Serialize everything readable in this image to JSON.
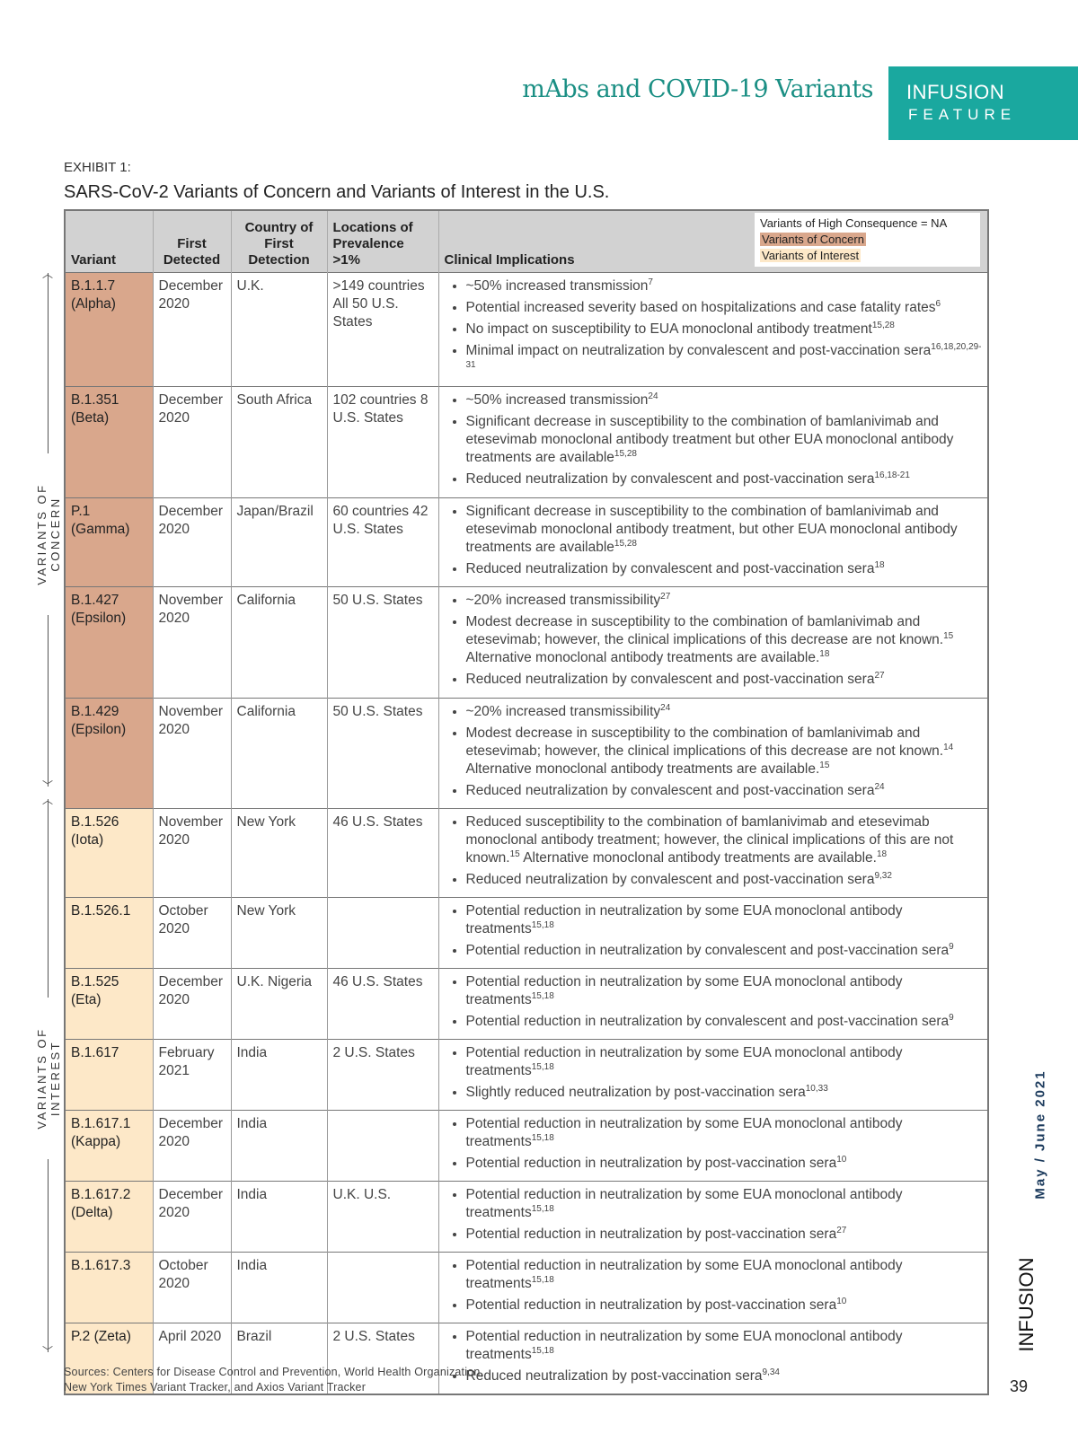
{
  "header": {
    "title": "mAbs and COVID-19 Variants",
    "brand": "INFUSION",
    "brand_sub": "FEATURE"
  },
  "exhibit": {
    "label": "EXHIBIT 1:",
    "title": "SARS-CoV-2 Variants of Concern and Variants of Interest in the U.S."
  },
  "colors": {
    "teal": "#1aa89f",
    "concern": "#d9a78c",
    "interest": "#fde8c8",
    "header_gray": "#d2d2d2"
  },
  "table": {
    "headers": {
      "variant": "Variant",
      "first_detected": "First Detected",
      "country": "Country of First Detection",
      "locations": "Locations of Prevalence >1%",
      "clinical": "Clinical Implications"
    },
    "legend": {
      "high": "Variants of High Consequence = NA",
      "concern": "Variants of Concern",
      "interest": "Variants of Interest"
    },
    "rows": [
      {
        "group": "concern",
        "variant": "B.1.1.7 (Alpha)",
        "first": "December 2020",
        "country": "U.K.",
        "locations": ">149 countries All 50 U.S. States",
        "bullets": [
          {
            "t": "~50% increased transmission",
            "s": "7"
          },
          {
            "t": "Potential increased severity based on hospitalizations and case fatality rates",
            "s": "6"
          },
          {
            "t": "No impact on susceptibility to EUA monoclonal antibody treatment",
            "s": "15,28"
          },
          {
            "t": "Minimal impact on neutralization by convalescent and post-vaccination sera",
            "s": "16,18,20,29-31"
          }
        ]
      },
      {
        "group": "concern",
        "variant": "B.1.351 (Beta)",
        "first": "December 2020",
        "country": "South Africa",
        "locations": "102 countries 8 U.S. States",
        "bullets": [
          {
            "t": "~50% increased transmission",
            "s": "24"
          },
          {
            "t": "Significant decrease in susceptibility to the combination of bamlanivimab and etesevimab monoclonal antibody treatment but other EUA monoclonal antibody treatments are available",
            "s": "15,28"
          },
          {
            "t": "Reduced neutralization by convalescent and post-vaccination sera",
            "s": "16,18-21"
          }
        ]
      },
      {
        "group": "concern",
        "variant": "P.1 (Gamma)",
        "first": "December 2020",
        "country": "Japan/Brazil",
        "locations": "60 countries 42 U.S. States",
        "bullets": [
          {
            "t": "Significant decrease in susceptibility to the combination of bamlanivimab and etesevimab monoclonal antibody treatment, but other EUA monoclonal antibody treatments are available",
            "s": "15,28"
          },
          {
            "t": "Reduced neutralization by convalescent and post-vaccination sera",
            "s": "18"
          }
        ]
      },
      {
        "group": "concern",
        "variant": "B.1.427 (Epsilon)",
        "first": "November 2020",
        "country": "California",
        "locations": "50 U.S. States",
        "bullets": [
          {
            "t": "~20% increased transmissibility",
            "s": "27"
          },
          {
            "t": "Modest decrease in susceptibility to the combination of bamlanivimab and etesevimab; however, the clinical implications of this decrease are not known.",
            "s": "15",
            "t2": " Alternative monoclonal antibody treatments are available.",
            "s2": "18"
          },
          {
            "t": "Reduced neutralization by convalescent and post-vaccination sera",
            "s": "27"
          }
        ]
      },
      {
        "group": "concern",
        "variant": "B.1.429 (Epsilon)",
        "first": "November 2020",
        "country": "California",
        "locations": "50 U.S. States",
        "bullets": [
          {
            "t": "~20% increased transmissibility",
            "s": "24"
          },
          {
            "t": "Modest decrease in susceptibility to the combination of bamlanivimab and etesevimab; however, the clinical implications of this decrease are not known.",
            "s": "14",
            "t2": " Alternative monoclonal antibody treatments are available.",
            "s2": "15"
          },
          {
            "t": "Reduced neutralization by convalescent and post-vaccination sera",
            "s": "24"
          }
        ]
      },
      {
        "group": "interest",
        "variant": "B.1.526 (Iota)",
        "first": "November 2020",
        "country": "New York",
        "locations": "46 U.S. States",
        "bullets": [
          {
            "t": "Reduced susceptibility to the combination of bamlanivimab and etesevimab monoclonal antibody treatment; however, the clinical implications of this are not known.",
            "s": "15",
            "t2": " Alternative monoclonal antibody treatments are available.",
            "s2": "18"
          },
          {
            "t": "Reduced neutralization by convalescent and post-vaccination sera",
            "s": "9,32"
          }
        ]
      },
      {
        "group": "interest",
        "variant": "B.1.526.1",
        "first": "October 2020",
        "country": "New York",
        "locations": "",
        "bullets": [
          {
            "t": "Potential reduction in neutralization by some EUA monoclonal antibody treatments",
            "s": "15,18"
          },
          {
            "t": "Potential reduction in neutralization by convalescent and post-vaccination sera",
            "s": "9"
          }
        ]
      },
      {
        "group": "interest",
        "variant": "B.1.525 (Eta)",
        "first": "December 2020",
        "country": "U.K. Nigeria",
        "locations": "46 U.S. States",
        "bullets": [
          {
            "t": "Potential reduction in neutralization by some EUA monoclonal antibody treatments",
            "s": "15,18"
          },
          {
            "t": "Potential reduction in neutralization by convalescent and post-vaccination sera",
            "s": "9"
          }
        ]
      },
      {
        "group": "interest",
        "variant": "B.1.617",
        "first": "February 2021",
        "country": "India",
        "locations": "2 U.S. States",
        "bullets": [
          {
            "t": "Potential reduction in neutralization by some EUA monoclonal antibody treatments",
            "s": "15,18"
          },
          {
            "t": "Slightly reduced neutralization by post-vaccination sera",
            "s": "10,33"
          }
        ]
      },
      {
        "group": "interest",
        "variant": "B.1.617.1 (Kappa)",
        "first": "December 2020",
        "country": "India",
        "locations": "",
        "bullets": [
          {
            "t": "Potential reduction in neutralization by some EUA monoclonal antibody treatments",
            "s": "15,18"
          },
          {
            "t": "Potential reduction in neutralization by post-vaccination sera",
            "s": "10"
          }
        ]
      },
      {
        "group": "interest",
        "variant": "B.1.617.2 (Delta)",
        "first": "December 2020",
        "country": "India",
        "locations": "U.K. U.S.",
        "bullets": [
          {
            "t": "Potential reduction in neutralization by some EUA monoclonal antibody treatments",
            "s": "15,18"
          },
          {
            "t": "Potential reduction in neutralization by post-vaccination sera",
            "s": "27"
          }
        ]
      },
      {
        "group": "interest",
        "variant": "B.1.617.3",
        "first": "October 2020",
        "country": "India",
        "locations": "",
        "bullets": [
          {
            "t": "Potential reduction in neutralization by some EUA monoclonal antibody treatments",
            "s": "15,18"
          },
          {
            "t": "Potential reduction in neutralization by post-vaccination sera",
            "s": "10"
          }
        ]
      },
      {
        "group": "interest",
        "variant": "P.2 (Zeta)",
        "first": "April 2020",
        "country": "Brazil",
        "locations": "2 U.S. States",
        "bullets": [
          {
            "t": "Potential reduction in neutralization by some EUA monoclonal antibody treatments",
            "s": "15,18"
          },
          {
            "t": "Reduced neutralization by post-vaccination sera",
            "s": "9,34"
          }
        ]
      }
    ]
  },
  "side_labels": {
    "concern": "VARIANTS OF CONCERN",
    "interest": "VARIANTS OF INTEREST"
  },
  "sources": {
    "line1": "Sources: Centers for Disease Control and Prevention, World Health Organization,",
    "line2": "New York Times Variant Tracker, and Axios Variant Tracker"
  },
  "footer": {
    "issue": "May / June 2021",
    "brand": "INFUSION",
    "page": "39"
  }
}
